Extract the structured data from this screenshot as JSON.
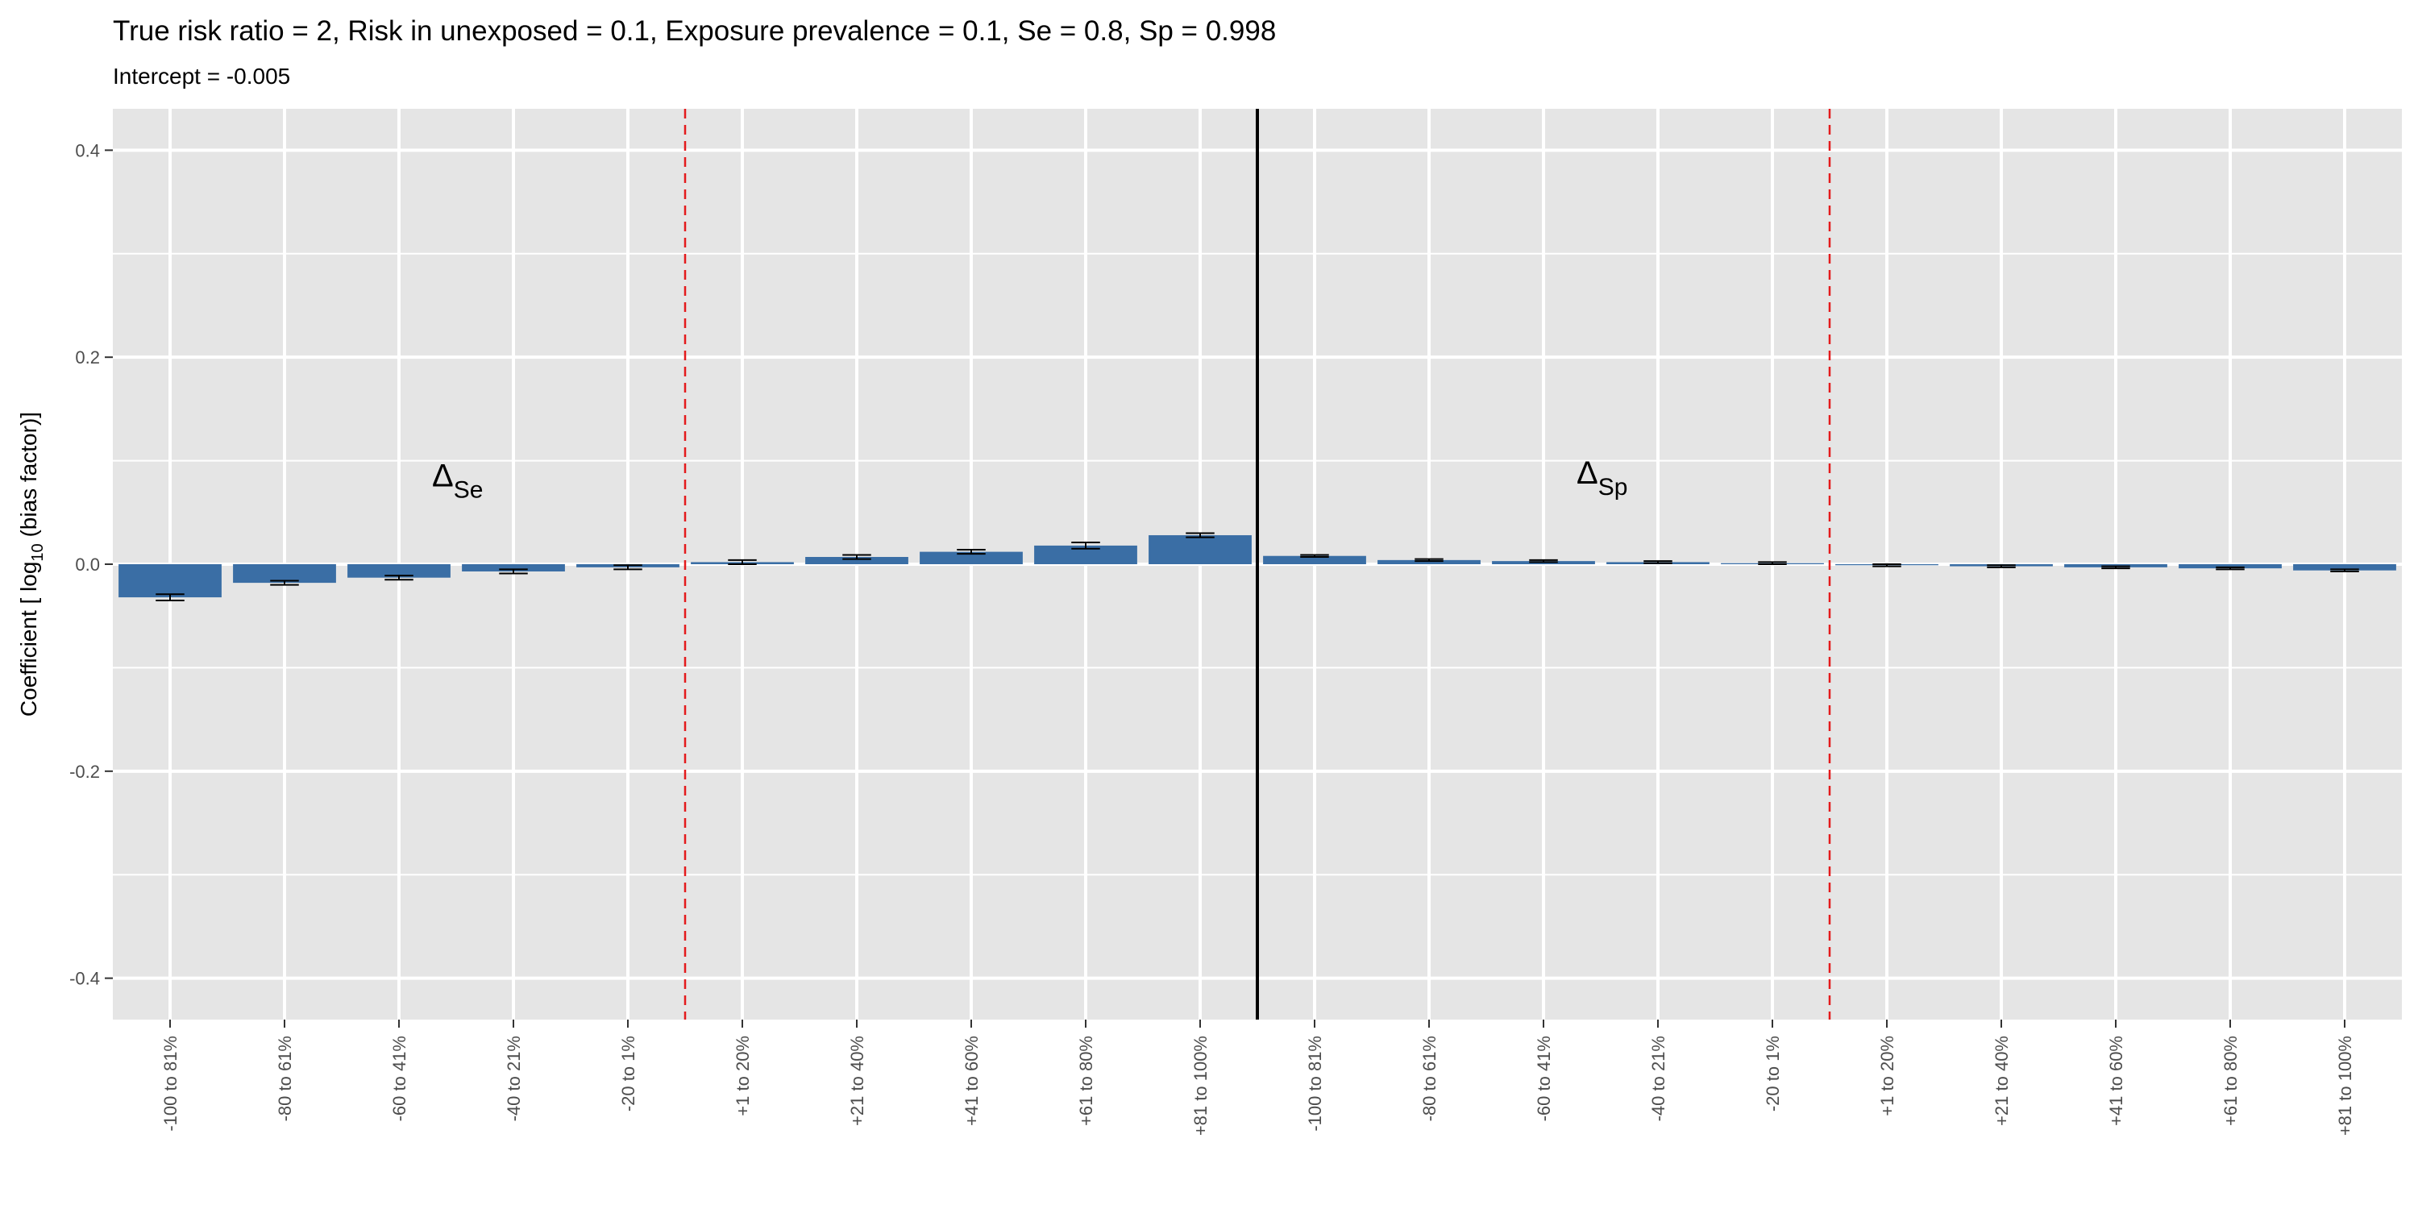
{
  "chart_data": {
    "type": "bar",
    "title": "True risk ratio = 2, Risk in unexposed = 0.1, Exposure prevalence = 0.1, Se = 0.8, Sp = 0.998",
    "subtitle": "Intercept = -0.005",
    "ylabel": "Coefficient [ log10 (bias factor)]",
    "xlabel": "",
    "ylim": [
      -0.44,
      0.44
    ],
    "yticks": [
      0.4,
      0.2,
      0.0,
      -0.2,
      -0.4
    ],
    "ytick_labels": [
      "0.4",
      "0.2",
      "0.0",
      "-0.2",
      "-0.4"
    ],
    "grid": true,
    "categories": [
      "-100 to 81%",
      "-80 to 61%",
      "-60 to 41%",
      "-40 to 21%",
      "-20 to 1%",
      "+1 to 20%",
      "+21 to 40%",
      "+41 to 60%",
      "+61 to 80%",
      "+81 to 100%",
      "-100 to 81%",
      "-80 to 61%",
      "-60 to 41%",
      "-40 to 21%",
      "-20 to 1%",
      "+1 to 20%",
      "+21 to 40%",
      "+41 to 60%",
      "+61 to 80%",
      "+81 to 100%"
    ],
    "values": [
      -0.032,
      -0.018,
      -0.013,
      -0.007,
      -0.003,
      0.002,
      0.007,
      0.012,
      0.018,
      0.028,
      0.008,
      0.004,
      0.003,
      0.002,
      0.001,
      -0.001,
      -0.002,
      -0.003,
      -0.004,
      -0.006
    ],
    "error_low": [
      -0.035,
      -0.02,
      -0.015,
      -0.009,
      -0.005,
      0.0,
      0.005,
      0.01,
      0.015,
      0.026,
      0.007,
      0.003,
      0.002,
      0.001,
      0.0,
      -0.002,
      -0.003,
      -0.004,
      -0.005,
      -0.007
    ],
    "error_high": [
      -0.029,
      -0.016,
      -0.011,
      -0.005,
      -0.001,
      0.004,
      0.009,
      0.014,
      0.021,
      0.03,
      0.009,
      0.005,
      0.004,
      0.003,
      0.002,
      0.0,
      -0.001,
      -0.002,
      -0.003,
      -0.005
    ],
    "panel_labels": [
      {
        "symbol": "Δ",
        "sub": "Se",
        "y": 0.075
      },
      {
        "symbol": "Δ",
        "sub": "Sp",
        "y": 0.078
      }
    ],
    "colors": {
      "bar": "#3a6ea5",
      "panel_bg": "#e5e5e5",
      "grid": "#ffffff",
      "separator_dashed": "#e41a1c",
      "separator_solid": "#000000"
    }
  }
}
